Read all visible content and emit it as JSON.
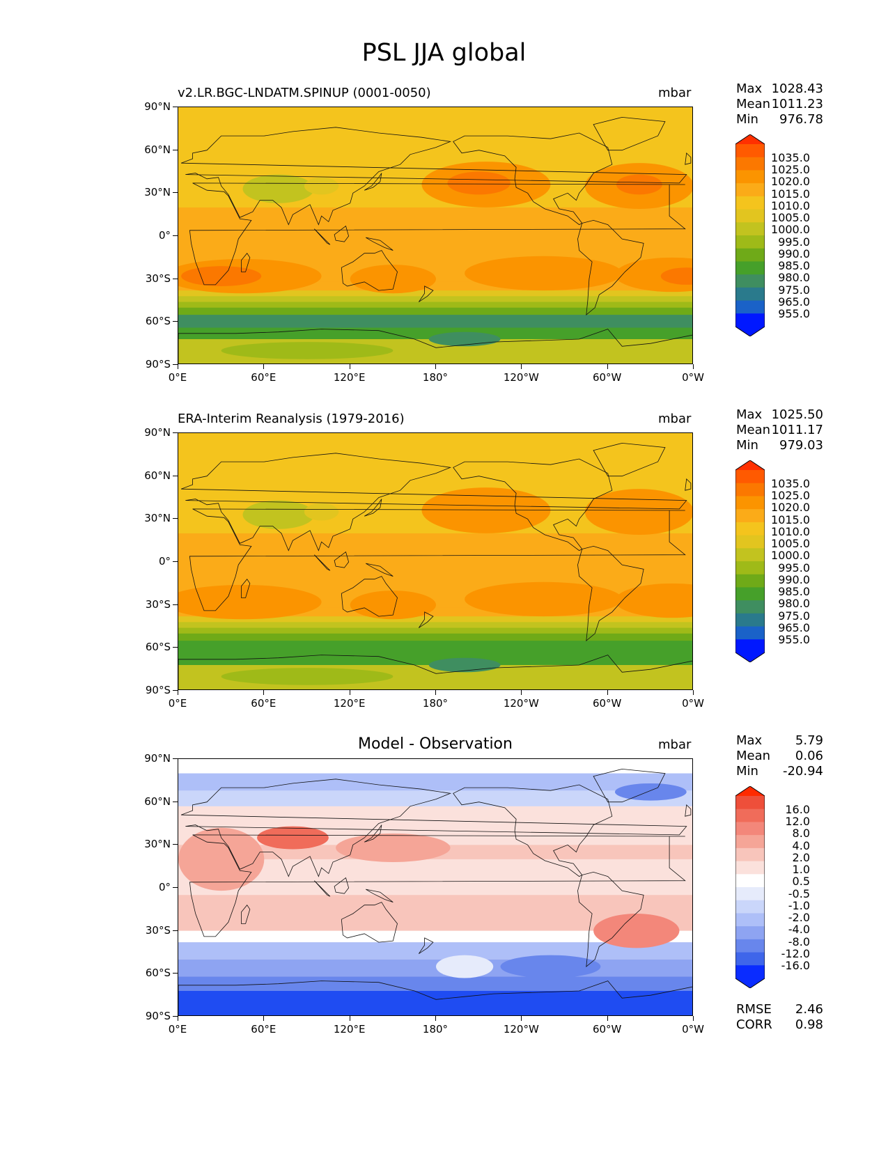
{
  "title": "PSL JJA global",
  "x_ticks": [
    "0°E",
    "60°E",
    "120°E",
    "180°",
    "120°W",
    "60°W",
    "0°W"
  ],
  "y_ticks": [
    "90°N",
    "60°N",
    "30°N",
    "0°",
    "30°S",
    "60°S",
    "90°S"
  ],
  "panels": [
    {
      "title": "v2.LR.BGC-LNDATM.SPINUP (0001-0050)",
      "units": "mbar",
      "stats": [
        {
          "label": "Max",
          "value": "1028.43"
        },
        {
          "label": "Mean",
          "value": "1011.23"
        },
        {
          "label": "Min",
          "value": "976.78"
        }
      ],
      "colorbar_labels": [
        "1035.0",
        "1025.0",
        "1020.0",
        "1015.0",
        "1010.0",
        "1005.0",
        "1000.0",
        "995.0",
        "990.0",
        "985.0",
        "980.0",
        "975.0",
        "965.0",
        "955.0"
      ]
    },
    {
      "title": "ERA-Interim Reanalysis (1979-2016)",
      "units": "mbar",
      "stats": [
        {
          "label": "Max",
          "value": "1025.50"
        },
        {
          "label": "Mean",
          "value": "1011.17"
        },
        {
          "label": "Min",
          "value": "979.03"
        }
      ],
      "colorbar_labels": [
        "1035.0",
        "1025.0",
        "1020.0",
        "1015.0",
        "1010.0",
        "1005.0",
        "1000.0",
        "995.0",
        "990.0",
        "985.0",
        "980.0",
        "975.0",
        "965.0",
        "955.0"
      ]
    },
    {
      "title": "Model - Observation",
      "units": "mbar",
      "stats": [
        {
          "label": "Max",
          "value": "5.79"
        },
        {
          "label": "Mean",
          "value": "0.06"
        },
        {
          "label": "Min",
          "value": "-20.94"
        }
      ],
      "extra_stats": [
        {
          "label": "RMSE",
          "value": "2.46"
        },
        {
          "label": "CORR",
          "value": "0.98"
        }
      ],
      "colorbar_labels": [
        "16.0",
        "12.0",
        "8.0",
        "4.0",
        "2.0",
        "1.0",
        "0.5",
        "-0.5",
        "-1.0",
        "-2.0",
        "-4.0",
        "-8.0",
        "-12.0",
        "-16.0"
      ]
    }
  ],
  "colors": {
    "psl": [
      "#ff3000",
      "#ff5a00",
      "#fb7800",
      "#fb9400",
      "#fbab18",
      "#f4c41d",
      "#e2c51f",
      "#c2c31f",
      "#9fba18",
      "#6faa18",
      "#46a02a",
      "#3f8e60",
      "#2a7a8c",
      "#1a62c8",
      "#0a3cff",
      "#0018ff"
    ],
    "diff": [
      "#ff2a00",
      "#ee4f3a",
      "#f06c5a",
      "#f3877a",
      "#f5a597",
      "#f8c5bb",
      "#fbe1dc",
      "#ffffff",
      "#e6ebfb",
      "#cad6fa",
      "#aebff8",
      "#8ea4f2",
      "#6886ec",
      "#3f66ea",
      "#1f4cf2",
      "#0a2cff"
    ]
  },
  "chart_data": [
    {
      "type": "heatmap",
      "title": "v2.LR.BGC-LNDATM.SPINUP (0001-0050)",
      "units": "mbar",
      "xlim": [
        "0°E",
        "0°W"
      ],
      "ylim": [
        -90,
        90
      ],
      "color_levels": [
        955,
        965,
        975,
        980,
        985,
        990,
        995,
        1000,
        1005,
        1010,
        1015,
        1020,
        1025,
        1035
      ],
      "max": 1028.43,
      "mean": 1011.23,
      "min": 976.78
    },
    {
      "type": "heatmap",
      "title": "ERA-Interim Reanalysis (1979-2016)",
      "units": "mbar",
      "xlim": [
        "0°E",
        "0°W"
      ],
      "ylim": [
        -90,
        90
      ],
      "color_levels": [
        955,
        965,
        975,
        980,
        985,
        990,
        995,
        1000,
        1005,
        1010,
        1015,
        1020,
        1025,
        1035
      ],
      "max": 1025.5,
      "mean": 1011.17,
      "min": 979.03
    },
    {
      "type": "heatmap",
      "title": "Model - Observation",
      "units": "mbar",
      "xlim": [
        "0°E",
        "0°W"
      ],
      "ylim": [
        -90,
        90
      ],
      "color_levels": [
        -16,
        -12,
        -8,
        -4,
        -2,
        -1,
        -0.5,
        0.5,
        1,
        2,
        4,
        8,
        12,
        16
      ],
      "max": 5.79,
      "mean": 0.06,
      "min": -20.94,
      "rmse": 2.46,
      "corr": 0.98
    }
  ]
}
